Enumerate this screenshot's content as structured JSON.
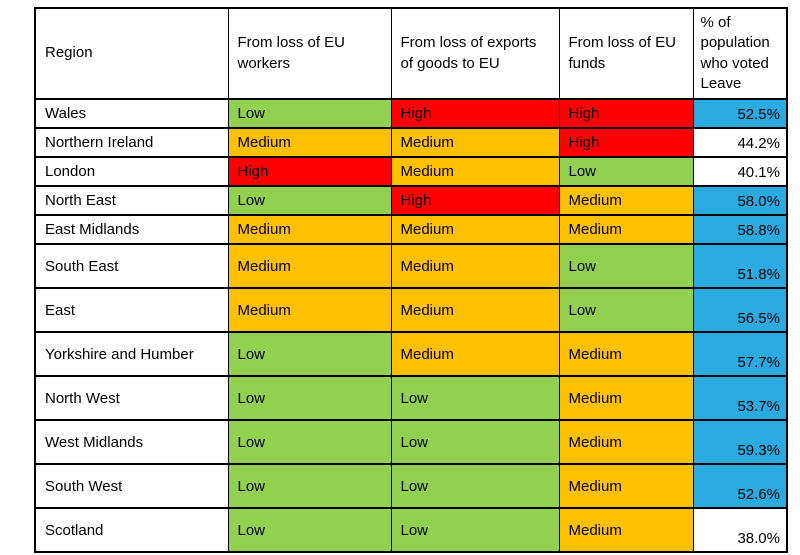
{
  "chart_data": {
    "type": "table",
    "headers": {
      "region": "Region",
      "workers": "From loss of EU workers",
      "exports": "From loss of exports of goods to EU",
      "funds": "From loss of EU funds",
      "leave": "% of population who voted Leave"
    },
    "risk_scale": [
      "Low",
      "Medium",
      "High"
    ],
    "rows": [
      {
        "region": "Wales",
        "workers": "Low",
        "exports": "High",
        "funds": "High",
        "leave": "52.5%",
        "leave_highlighted": true
      },
      {
        "region": "Northern Ireland",
        "workers": "Medium",
        "exports": "Medium",
        "funds": "High",
        "leave": "44.2%",
        "leave_highlighted": false
      },
      {
        "region": "London",
        "workers": "High",
        "exports": "Medium",
        "funds": "Low",
        "leave": "40.1%",
        "leave_highlighted": false
      },
      {
        "region": "North East",
        "workers": "Low",
        "exports": "High",
        "funds": "Medium",
        "leave": "58.0%",
        "leave_highlighted": true
      },
      {
        "region": "East Midlands",
        "workers": "Medium",
        "exports": "Medium",
        "funds": "Medium",
        "leave": "58.8%",
        "leave_highlighted": true
      },
      {
        "region": "South East",
        "workers": "Medium",
        "exports": "Medium",
        "funds": "Low",
        "leave": "51.8%",
        "leave_highlighted": true
      },
      {
        "region": "East",
        "workers": "Medium",
        "exports": "Medium",
        "funds": "Low",
        "leave": "56.5%",
        "leave_highlighted": true
      },
      {
        "region": "Yorkshire and Humber",
        "workers": "Low",
        "exports": "Medium",
        "funds": "Medium",
        "leave": "57.7%",
        "leave_highlighted": true
      },
      {
        "region": "North West",
        "workers": "Low",
        "exports": "Low",
        "funds": "Medium",
        "leave": "53.7%",
        "leave_highlighted": true
      },
      {
        "region": "West Midlands",
        "workers": "Low",
        "exports": "Low",
        "funds": "Medium",
        "leave": "59.3%",
        "leave_highlighted": true
      },
      {
        "region": "South West",
        "workers": "Low",
        "exports": "Low",
        "funds": "Medium",
        "leave": "52.6%",
        "leave_highlighted": true
      },
      {
        "region": "Scotland",
        "workers": "Low",
        "exports": "Low",
        "funds": "Medium",
        "leave": "38.0%",
        "leave_highlighted": false
      }
    ],
    "colors": {
      "low": "#92D050",
      "medium": "#FFC000",
      "high": "#FF0000",
      "leave_highlight": "#29ABE2",
      "border": "#000000",
      "page_background": "#FFFFFF",
      "text": "#000000"
    }
  }
}
